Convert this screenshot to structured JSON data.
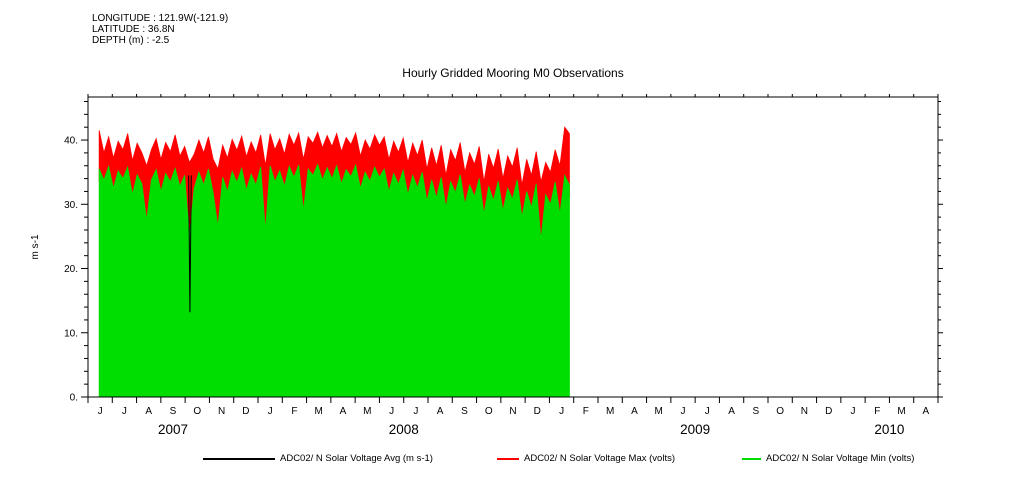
{
  "header": {
    "lines": [
      "LONGITUDE : 121.9W(-121.9)",
      "LATITUDE : 36.8N",
      "DEPTH (m) : -2.5"
    ]
  },
  "chart_data": {
    "type": "line",
    "title": "Hourly Gridded Mooring M0 Observations",
    "xlabel": "",
    "ylabel": "m s-1",
    "ylim": [
      0,
      46.7
    ],
    "y_major_ticks": [
      0,
      10,
      20,
      30,
      40
    ],
    "y_tick_labels": [
      "0.",
      "10.",
      "20.",
      "30.",
      "40."
    ],
    "x_range_years": [
      2007.4167,
      2010.3333
    ],
    "month_labels": [
      "J",
      "J",
      "A",
      "S",
      "O",
      "N",
      "D",
      "J",
      "F",
      "M",
      "A",
      "M",
      "J",
      "J",
      "A",
      "S",
      "O",
      "N",
      "D",
      "J",
      "F",
      "M",
      "A",
      "M",
      "J",
      "J",
      "A",
      "S",
      "O",
      "N",
      "D",
      "J",
      "F",
      "M",
      "A"
    ],
    "years": [
      {
        "label": "2007",
        "span": [
          0,
          7
        ]
      },
      {
        "label": "2008",
        "span": [
          7,
          19
        ]
      },
      {
        "label": "2009",
        "span": [
          19,
          31
        ]
      },
      {
        "label": "2010",
        "span": [
          31,
          35
        ]
      }
    ],
    "grid": false,
    "legend_position": "bottom",
    "series": [
      {
        "name": "ADC02/ N Solar Voltage Avg (m s-1)",
        "color": "#000000",
        "role": "line",
        "points": [
          [
            2007.762,
            34.5
          ],
          [
            2007.7665,
            13.2
          ],
          [
            2007.771,
            34.5
          ]
        ]
      },
      {
        "name": "ADC02/ N Solar Voltage Max (volts)",
        "color": "#ff0000",
        "role": "band-top",
        "x_start": 2007.455,
        "x_step": 0.0163,
        "values": [
          41.5,
          38.0,
          40.5,
          37.2,
          39.8,
          38.5,
          41.0,
          36.8,
          39.5,
          38.0,
          36.0,
          38.5,
          40.2,
          37.0,
          39.6,
          38.2,
          40.8,
          37.5,
          39.0,
          36.5,
          37.8,
          40.0,
          38.0,
          40.5,
          37.0,
          35.5,
          39.2,
          37.2,
          40.1,
          38.4,
          40.6,
          37.4,
          39.7,
          38.0,
          40.8,
          36.0,
          41.0,
          38.5,
          40.2,
          37.8,
          40.9,
          39.2,
          41.1,
          37.0,
          40.5,
          39.5,
          41.2,
          38.8,
          40.7,
          39.0,
          41.0,
          38.2,
          40.4,
          39.3,
          41.1,
          37.5,
          40.0,
          38.6,
          40.8,
          39.2,
          40.5,
          37.0,
          39.8,
          38.1,
          40.3,
          36.5,
          39.5,
          37.6,
          40.0,
          35.5,
          38.8,
          36.0,
          39.2,
          34.5,
          38.5,
          36.8,
          39.6,
          35.0,
          38.0,
          36.2,
          39.0,
          33.5,
          37.8,
          35.6,
          38.6,
          34.0,
          37.5,
          35.8,
          38.8,
          33.0,
          37.0,
          34.5,
          38.2,
          33.5,
          36.5,
          35.0,
          38.5,
          36.0,
          42.0,
          41.0
        ]
      },
      {
        "name": "ADC02/ N Solar Voltage Min (volts)",
        "color": "#00dd00",
        "role": "area",
        "x_start": 2007.455,
        "x_step": 0.0163,
        "values": [
          35.5,
          33.8,
          35.9,
          32.5,
          35.2,
          34.0,
          35.8,
          31.5,
          34.6,
          33.2,
          27.5,
          33.8,
          35.4,
          32.0,
          34.8,
          33.5,
          35.6,
          32.8,
          34.5,
          25.0,
          32.5,
          35.0,
          33.0,
          35.5,
          31.8,
          26.5,
          34.2,
          32.0,
          35.1,
          33.4,
          35.6,
          32.2,
          34.7,
          33.0,
          35.8,
          26.0,
          36.0,
          33.5,
          35.2,
          32.8,
          35.9,
          34.2,
          36.1,
          29.0,
          35.5,
          34.5,
          36.2,
          33.8,
          35.7,
          34.0,
          36.0,
          33.2,
          35.4,
          34.3,
          36.1,
          32.5,
          35.0,
          33.6,
          35.8,
          34.2,
          35.5,
          32.0,
          34.8,
          33.1,
          35.3,
          31.5,
          34.5,
          32.6,
          35.0,
          30.5,
          33.8,
          31.0,
          34.2,
          29.5,
          33.5,
          31.8,
          34.6,
          30.0,
          33.0,
          31.2,
          34.0,
          28.5,
          32.8,
          30.6,
          33.6,
          29.0,
          32.5,
          30.8,
          33.8,
          28.0,
          32.0,
          29.5,
          33.2,
          24.5,
          31.5,
          30.0,
          33.5,
          28.5,
          34.5,
          33.0
        ]
      }
    ]
  }
}
